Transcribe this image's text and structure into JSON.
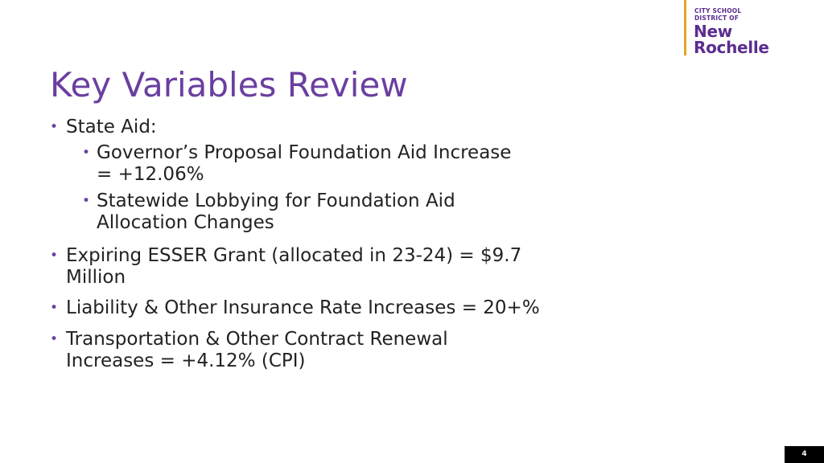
{
  "logo": {
    "line1": "CITY SCHOOL",
    "line2": "DISTRICT OF",
    "line3": "New",
    "line4": "Rochelle"
  },
  "title": "Key Variables Review",
  "bullets": [
    {
      "marker": "•",
      "lines": [
        "State Aid:"
      ]
    },
    {
      "marker": "•",
      "lines": [
        "Governor’s Proposal Foundation Aid Increase",
        "= +12.06%"
      ]
    },
    {
      "marker": "•",
      "lines": [
        "Statewide Lobbying for Foundation Aid",
        "Allocation Changes"
      ]
    },
    {
      "marker": "•",
      "lines": [
        "Expiring ESSER Grant (allocated in 23-24) = $9.7",
        "Million"
      ]
    },
    {
      "marker": "•",
      "lines": [
        "Liability & Other Insurance Rate Increases = 20+%"
      ]
    },
    {
      "marker": "•",
      "lines": [
        "Transportation & Other Contract Renewal",
        "Increases =  +4.12% (CPI)"
      ]
    }
  ],
  "page_number": "4",
  "colors": {
    "accent": "#6a3fa0",
    "logo_bar": "#e2a722",
    "logo_text": "#5b2d90"
  }
}
